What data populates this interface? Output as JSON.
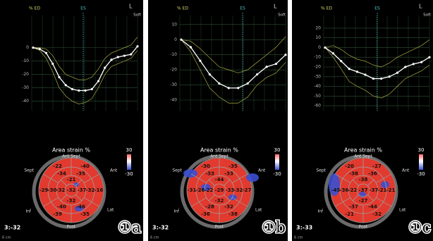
{
  "panels": [
    {
      "y_label": "% ED",
      "es_label": "ES",
      "view": "L",
      "mode": "Soft",
      "ylim": [
        -47,
        24
      ],
      "yticks": [
        0,
        -10,
        -20,
        -30,
        -40
      ],
      "mean_curve": [
        0,
        -1,
        -4,
        -12,
        -22,
        -28,
        -31,
        -32,
        -32,
        -31,
        -25,
        -15,
        -9,
        -7,
        -6,
        -5,
        1
      ],
      "segment_curves": [
        [
          0,
          -2,
          -8,
          -18,
          -30,
          -36,
          -40,
          -42,
          -41,
          -38,
          -30,
          -20,
          -14,
          -12,
          -10,
          -8,
          -2
        ],
        [
          0,
          0,
          -1,
          -6,
          -14,
          -20,
          -22,
          -24,
          -24,
          -22,
          -16,
          -8,
          -4,
          -2,
          0,
          2,
          8
        ]
      ],
      "bullseye": {
        "title": "Area strain %",
        "walls": [
          "Ant Sept",
          "Sept",
          "Ant",
          "Inf",
          "Lat",
          "Post"
        ],
        "segments": [
          -22,
          -40,
          -16,
          -35,
          -39,
          -29,
          -34,
          -35,
          -32,
          -46,
          -40,
          -30,
          -21,
          -37,
          -32,
          -32,
          -32
        ],
        "scale": [
          30,
          -30
        ]
      },
      "global": "3:-32",
      "depth": "6 cm",
      "label": "①a"
    },
    {
      "y_label": "% ED",
      "es_label": "ES",
      "view": "L",
      "mode": "Soft",
      "ylim": [
        -47,
        16
      ],
      "yticks": [
        10,
        0,
        -10,
        -20,
        -30,
        -40
      ],
      "mean_curve": [
        0,
        -5,
        -14,
        -23,
        -29,
        -32,
        -32,
        -29,
        -23,
        -18,
        -16,
        -10
      ],
      "segment_curves": [
        [
          0,
          -8,
          -20,
          -32,
          -38,
          -42,
          -42,
          -38,
          -30,
          -25,
          -22,
          -15
        ],
        [
          0,
          -1,
          -6,
          -12,
          -18,
          -20,
          -22,
          -20,
          -15,
          -10,
          -5,
          2
        ]
      ],
      "bullseye": {
        "title": "Area strain %",
        "walls": [
          "Ant Sept",
          "Sept",
          "Ant",
          "Inf",
          "Lat",
          "Post"
        ],
        "segments": [
          -30,
          -35,
          -27,
          -38,
          -36,
          -31,
          -33,
          -33,
          -32,
          -32,
          -28,
          -26,
          -44,
          -33,
          -32,
          -22,
          -29
        ],
        "scale": [
          30,
          -30
        ]
      },
      "global": "3:-32",
      "depth": "6 cm",
      "label": "①b"
    },
    {
      "y_label": "% ED",
      "es_label": "ES",
      "view": "L",
      "mode": "Soft",
      "ylim": [
        -65,
        33
      ],
      "yticks": [
        20,
        10,
        0,
        -10,
        -20,
        -30,
        -40,
        -50,
        -60
      ],
      "mean_curve": [
        0,
        -6,
        -14,
        -22,
        -25,
        -28,
        -32,
        -32,
        -30,
        -26,
        -20,
        -17,
        -15,
        -10
      ],
      "segment_curves": [
        [
          0,
          -10,
          -22,
          -35,
          -40,
          -44,
          -50,
          -52,
          -48,
          -40,
          -32,
          -28,
          -24,
          -18
        ],
        [
          0,
          2,
          -2,
          -8,
          -12,
          -14,
          -18,
          -20,
          -16,
          -10,
          -6,
          -2,
          2,
          8
        ]
      ],
      "bullseye": {
        "title": "Area strain %",
        "walls": [
          "Ant Sept",
          "Sept",
          "Ant",
          "Inf",
          "Lat",
          "Post"
        ],
        "segments": [
          -20,
          -27,
          -21,
          -32,
          -21,
          -45,
          -38,
          -36,
          -21,
          -44,
          -37,
          -36,
          -38,
          -37,
          -27,
          -22,
          -37
        ],
        "scale": [
          30,
          -30
        ]
      },
      "global": "3:-33",
      "depth": "6 cm",
      "label": "①c"
    }
  ]
}
